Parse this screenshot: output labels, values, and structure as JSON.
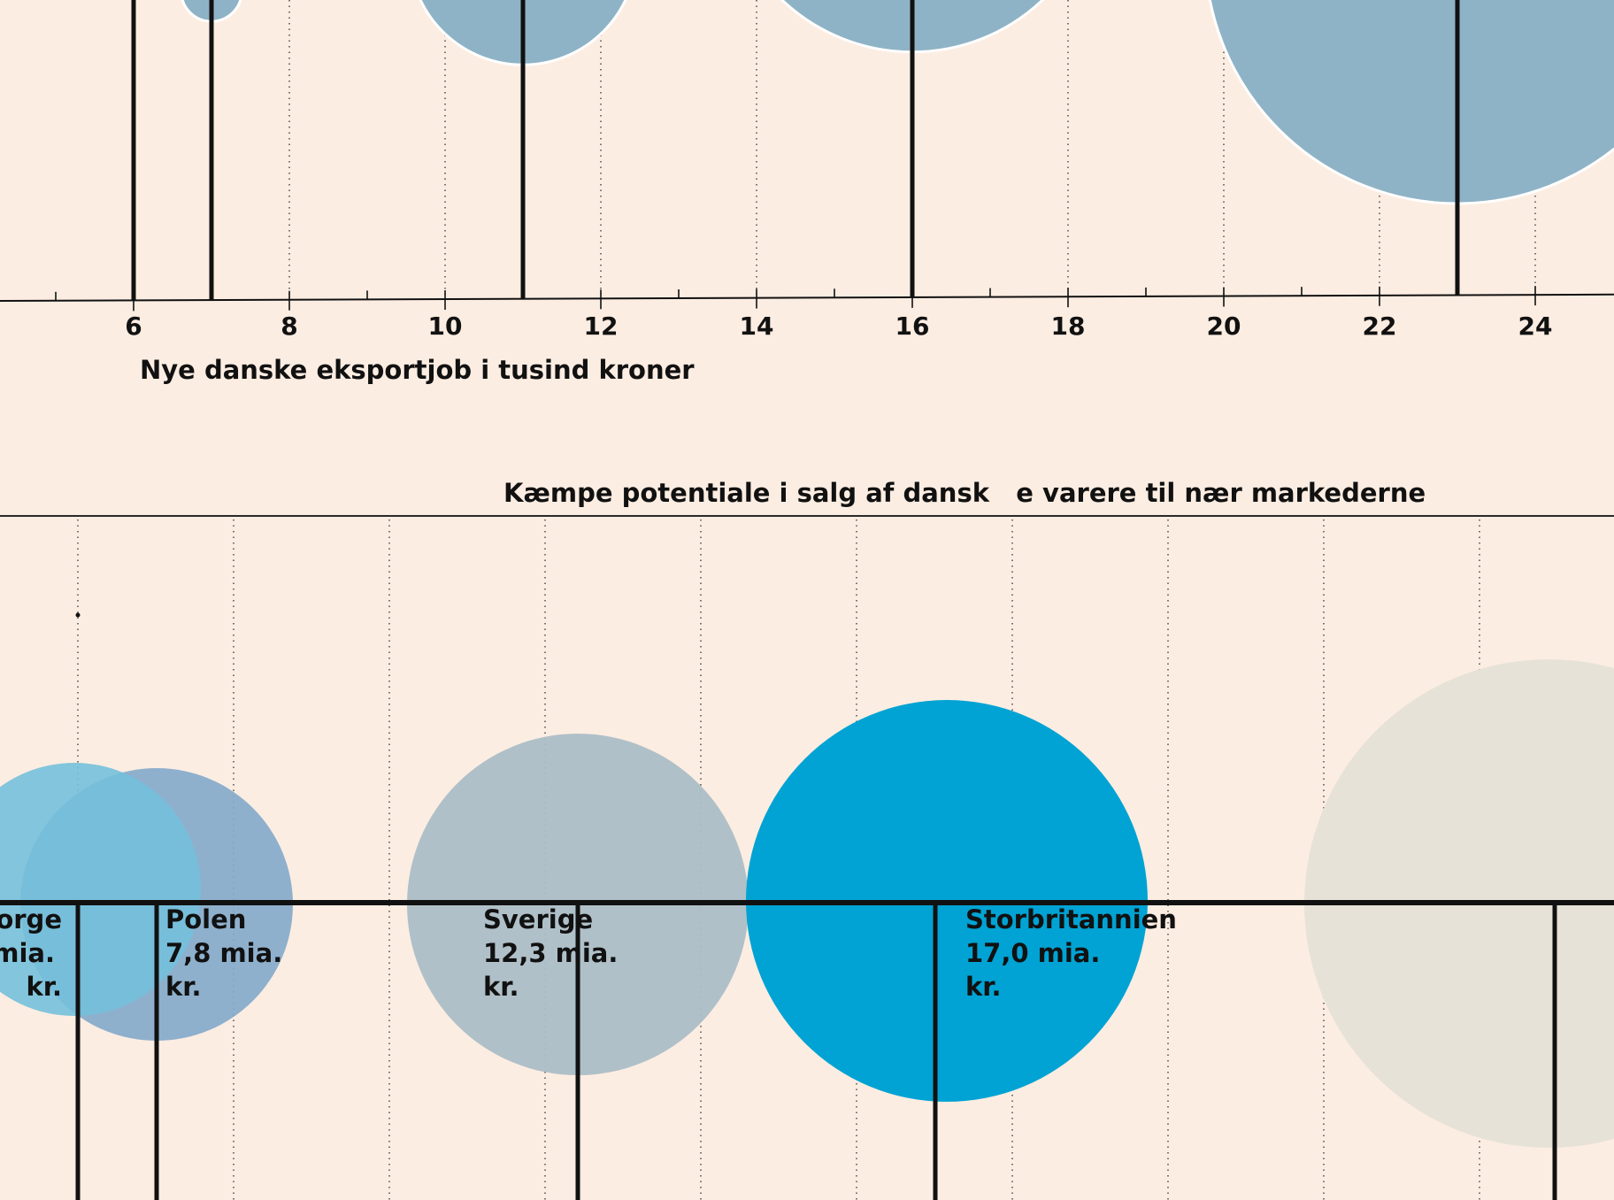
{
  "colors": {
    "background": "#fcede2",
    "top_bubble": "#8fb3c6",
    "axis": "#111111"
  },
  "chart_data": [
    {
      "type": "scatter",
      "title": "",
      "xlabel": "Nye danske eksportjob i tusind kroner",
      "ylabel": "",
      "xlim": [
        4.3,
        24.9
      ],
      "x_ticks": [
        "6",
        "8",
        "10",
        "12",
        "14",
        "16",
        "18",
        "20",
        "22",
        "24"
      ],
      "grid": "vertical dotted",
      "stems_x": [
        6,
        7,
        11,
        16,
        23
      ],
      "bubbles": [
        {
          "x": 7,
          "radius_rel": 0.12
        },
        {
          "x": 11,
          "radius_rel": 0.45
        },
        {
          "x": 16,
          "radius_rel": 0.75
        },
        {
          "x": 23,
          "radius_rel": 1.0
        }
      ]
    },
    {
      "type": "scatter",
      "title": "Kæmpe potentiale i salg af dansk   e varere til nær markederne",
      "grid": "vertical dotted",
      "bubbles": [
        {
          "name": "Norge",
          "label_lines": [
            "Norge",
            "mia.",
            "kr."
          ],
          "value": null,
          "color": "#74c0dc"
        },
        {
          "name": "Polen",
          "label_lines": [
            "Polen",
            "7,8 mia.",
            "kr."
          ],
          "value": 7.8,
          "unit": "mia. kr.",
          "color": "#82a9cb"
        },
        {
          "name": "Sverige",
          "label_lines": [
            "Sverige",
            "12,3 mia.",
            "kr."
          ],
          "value": 12.3,
          "unit": "mia. kr.",
          "color": "#acbec6"
        },
        {
          "name": "Storbritannien",
          "label_lines": [
            "Storbritannien",
            "17,0 mia.",
            "kr."
          ],
          "value": 17.0,
          "unit": "mia. kr.",
          "color": "#00a3d3"
        },
        {
          "name": "",
          "label_lines": [],
          "value": null,
          "color": "#e7e2d7"
        }
      ]
    }
  ]
}
